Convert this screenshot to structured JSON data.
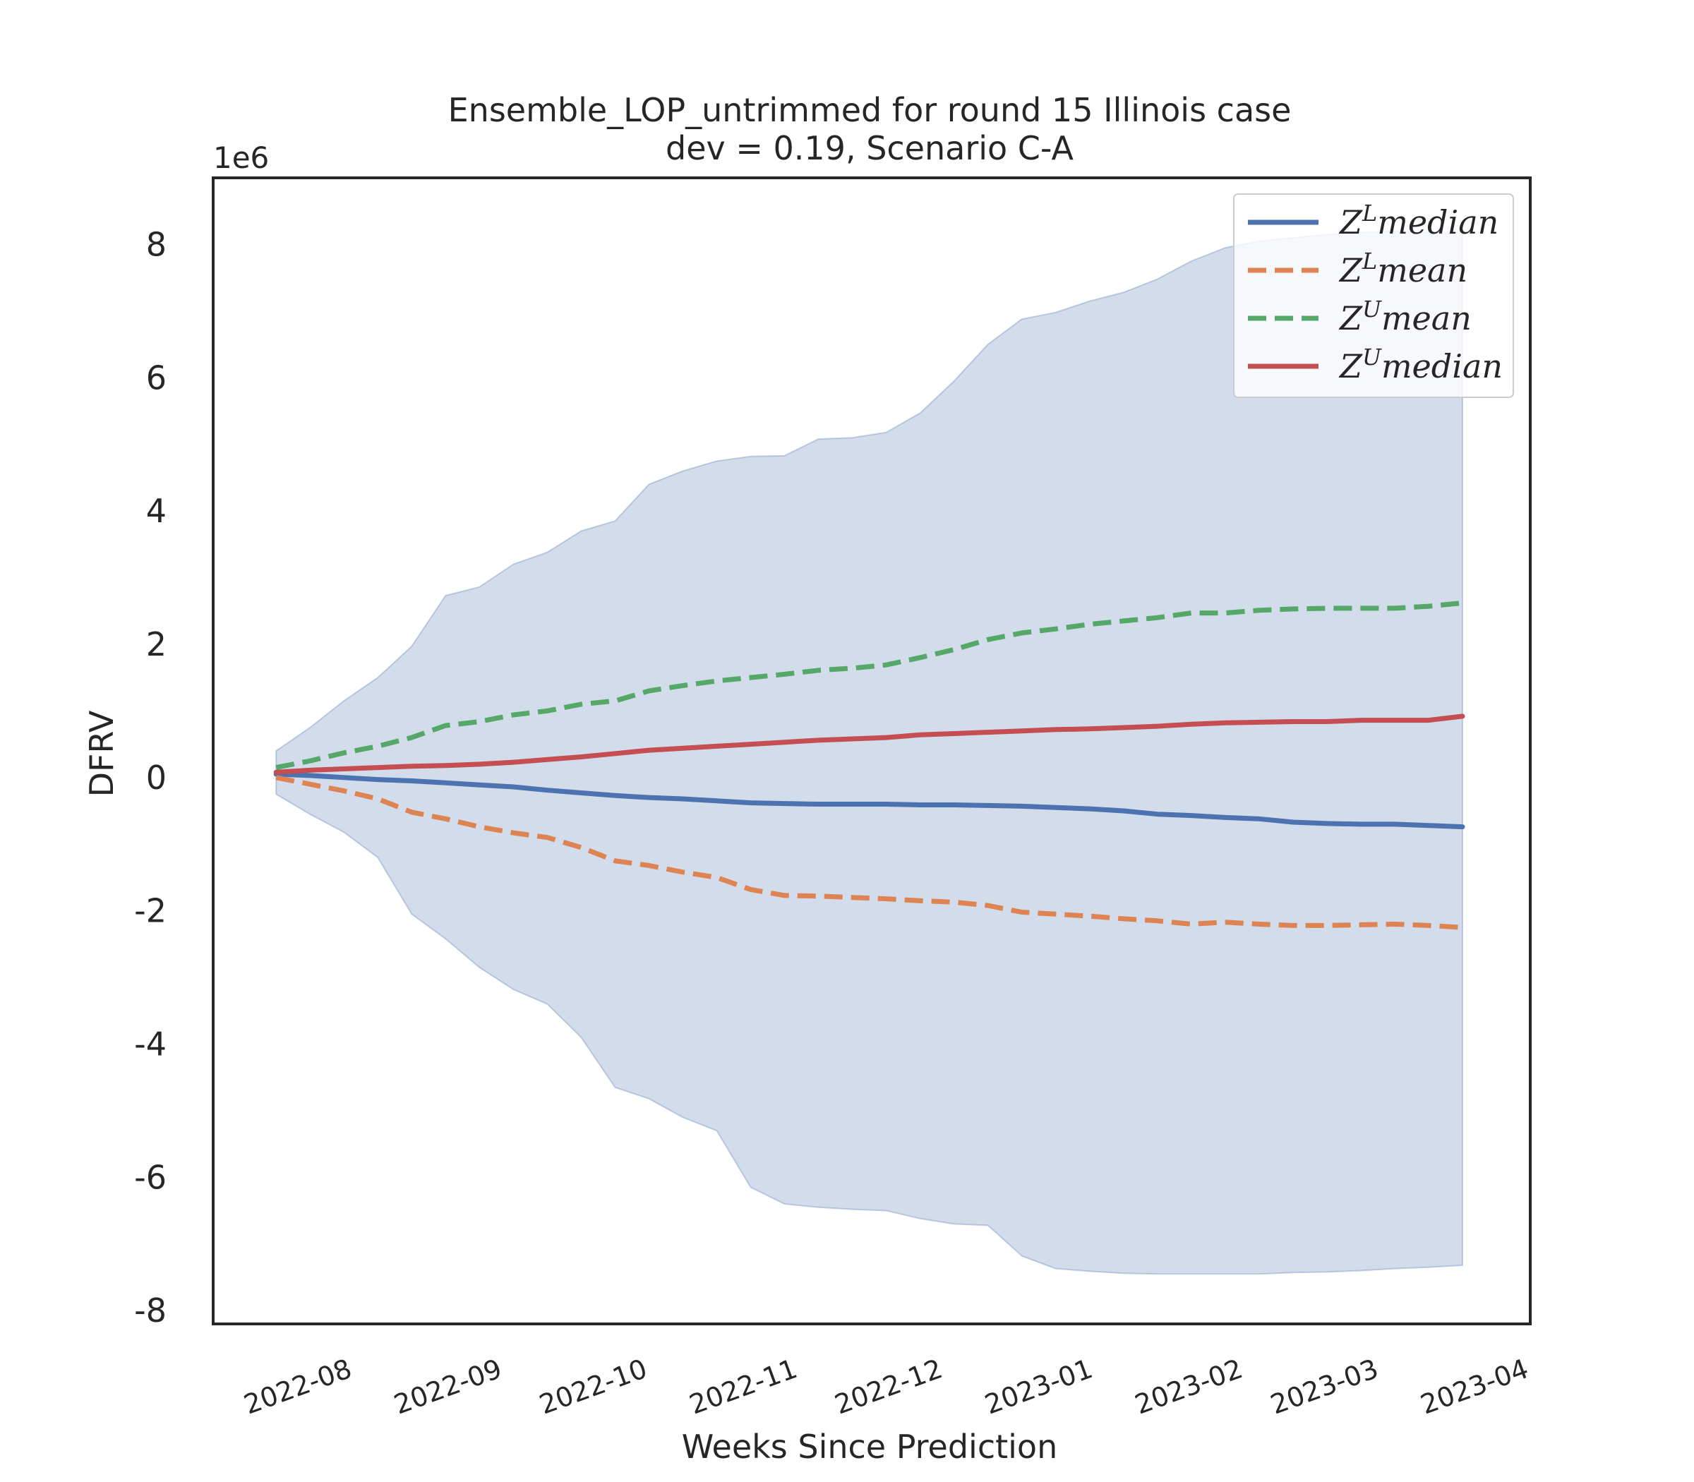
{
  "chart_data": {
    "type": "line",
    "title": "Ensemble_LOP_untrimmed for round 15 Illinois case",
    "subtitle": "dev = 0.19, Scenario C-A",
    "xlabel": "Weeks Since Prediction",
    "ylabel": "DFRV",
    "y_offset_label": "1e6",
    "ylim": [
      -8.2,
      9.0
    ],
    "yticks": [
      -8,
      -6,
      -4,
      -2,
      0,
      2,
      4,
      6,
      8
    ],
    "ytick_labels": [
      "-8",
      "-6",
      "-4",
      "-2",
      "0",
      "2",
      "4",
      "6",
      "8"
    ],
    "xlim": [
      "2022-07-10",
      "2023-04-08"
    ],
    "xticks": [
      "2022-08-01",
      "2022-09-01",
      "2022-10-01",
      "2022-11-01",
      "2022-12-01",
      "2023-01-01",
      "2023-02-01",
      "2023-03-01",
      "2023-04-01"
    ],
    "xtick_labels": [
      "2022-08",
      "2022-09",
      "2022-10",
      "2022-11",
      "2022-12",
      "2023-01",
      "2023-02",
      "2023-03",
      "2023-04"
    ],
    "grid": false,
    "legend_position": "top-right",
    "x": [
      "2022-07-23",
      "2022-07-30",
      "2022-08-06",
      "2022-08-13",
      "2022-08-20",
      "2022-08-27",
      "2022-09-03",
      "2022-09-10",
      "2022-09-17",
      "2022-09-24",
      "2022-10-01",
      "2022-10-08",
      "2022-10-15",
      "2022-10-22",
      "2022-10-29",
      "2022-11-05",
      "2022-11-12",
      "2022-11-19",
      "2022-11-26",
      "2022-12-03",
      "2022-12-10",
      "2022-12-17",
      "2022-12-24",
      "2022-12-31",
      "2023-01-07",
      "2023-01-14",
      "2023-01-21",
      "2023-01-28",
      "2023-02-04",
      "2023-02-11",
      "2023-02-18",
      "2023-02-25",
      "2023-03-04",
      "2023-03-11",
      "2023-03-18",
      "2023-03-25"
    ],
    "band": {
      "upper": [
        0.4,
        0.75,
        1.15,
        1.5,
        1.97,
        2.73,
        2.86,
        3.2,
        3.38,
        3.7,
        3.85,
        4.4,
        4.6,
        4.75,
        4.82,
        4.83,
        5.08,
        5.1,
        5.18,
        5.47,
        5.95,
        6.5,
        6.88,
        6.98,
        7.15,
        7.28,
        7.48,
        7.75,
        7.95,
        8.05,
        8.1,
        8.15,
        8.18,
        8.2,
        8.18,
        8.18
      ],
      "lower": [
        -0.25,
        -0.55,
        -0.82,
        -1.2,
        -2.05,
        -2.42,
        -2.85,
        -3.18,
        -3.4,
        -3.9,
        -4.65,
        -4.82,
        -5.1,
        -5.3,
        -6.15,
        -6.4,
        -6.45,
        -6.48,
        -6.5,
        -6.62,
        -6.7,
        -6.72,
        -7.18,
        -7.37,
        -7.41,
        -7.44,
        -7.45,
        -7.45,
        -7.45,
        -7.45,
        -7.43,
        -7.42,
        -7.4,
        -7.37,
        -7.35,
        -7.32
      ],
      "color": "#4c72b0"
    },
    "series": [
      {
        "name": "$Z^L median$",
        "style": "solid",
        "color": "#4c72b0",
        "values": [
          0.05,
          0.03,
          0.0,
          -0.03,
          -0.05,
          -0.08,
          -0.11,
          -0.14,
          -0.19,
          -0.23,
          -0.27,
          -0.3,
          -0.32,
          -0.35,
          -0.38,
          -0.39,
          -0.4,
          -0.4,
          -0.4,
          -0.41,
          -0.41,
          -0.42,
          -0.43,
          -0.45,
          -0.47,
          -0.5,
          -0.55,
          -0.57,
          -0.6,
          -0.62,
          -0.67,
          -0.69,
          -0.7,
          -0.7,
          -0.72,
          -0.74
        ]
      },
      {
        "name": "$Z^L mean$",
        "style": "dashed",
        "color": "#dd8452",
        "values": [
          0.0,
          -0.1,
          -0.2,
          -0.32,
          -0.52,
          -0.62,
          -0.74,
          -0.83,
          -0.9,
          -1.05,
          -1.25,
          -1.32,
          -1.42,
          -1.5,
          -1.68,
          -1.77,
          -1.78,
          -1.8,
          -1.82,
          -1.85,
          -1.87,
          -1.92,
          -2.02,
          -2.05,
          -2.08,
          -2.12,
          -2.15,
          -2.2,
          -2.17,
          -2.2,
          -2.22,
          -2.22,
          -2.21,
          -2.2,
          -2.22,
          -2.25
        ]
      },
      {
        "name": "$Z^U mean$",
        "style": "dashed",
        "color": "#55a868",
        "values": [
          0.15,
          0.25,
          0.37,
          0.47,
          0.6,
          0.78,
          0.84,
          0.94,
          1.0,
          1.1,
          1.15,
          1.3,
          1.38,
          1.45,
          1.5,
          1.55,
          1.61,
          1.64,
          1.69,
          1.8,
          1.92,
          2.07,
          2.17,
          2.23,
          2.3,
          2.35,
          2.4,
          2.47,
          2.47,
          2.51,
          2.53,
          2.54,
          2.54,
          2.54,
          2.57,
          2.62
        ]
      },
      {
        "name": "$Z^U median$",
        "style": "solid",
        "color": "#c44e52",
        "values": [
          0.08,
          0.11,
          0.13,
          0.15,
          0.17,
          0.18,
          0.2,
          0.23,
          0.27,
          0.31,
          0.36,
          0.41,
          0.44,
          0.47,
          0.5,
          0.53,
          0.56,
          0.58,
          0.6,
          0.64,
          0.66,
          0.68,
          0.7,
          0.72,
          0.73,
          0.75,
          0.77,
          0.8,
          0.82,
          0.83,
          0.84,
          0.84,
          0.86,
          0.86,
          0.86,
          0.92
        ]
      }
    ]
  }
}
